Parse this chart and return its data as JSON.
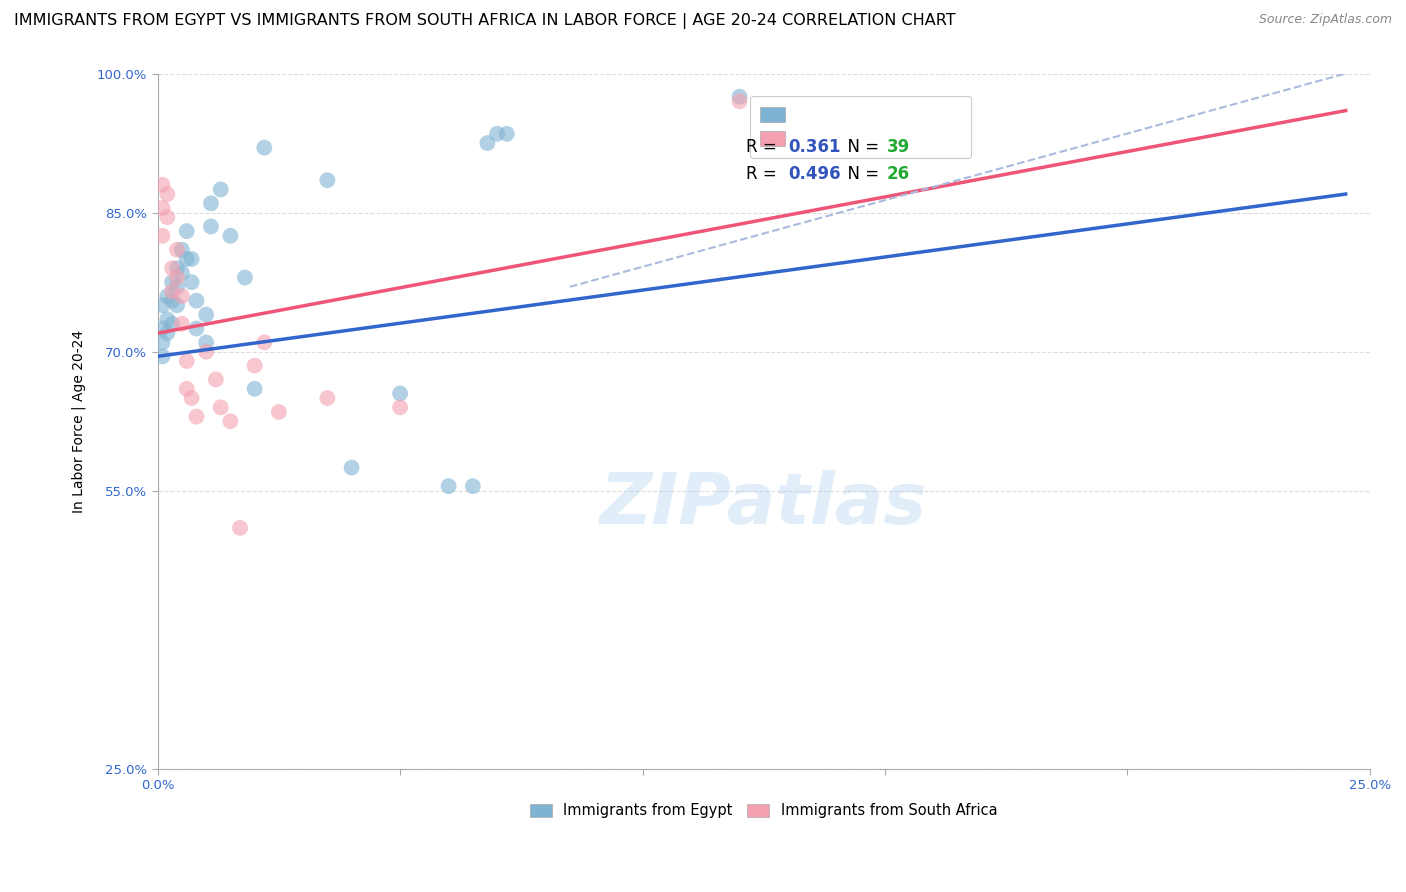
{
  "title": "IMMIGRANTS FROM EGYPT VS IMMIGRANTS FROM SOUTH AFRICA IN LABOR FORCE | AGE 20-24 CORRELATION CHART",
  "source": "Source: ZipAtlas.com",
  "ylabel": "In Labor Force | Age 20-24",
  "xlim": [
    0.0,
    0.25
  ],
  "ylim": [
    0.25,
    1.0
  ],
  "xticks": [
    0.0,
    0.05,
    0.1,
    0.15,
    0.2,
    0.25
  ],
  "yticks": [
    0.25,
    0.55,
    0.7,
    0.85,
    1.0
  ],
  "xtick_labels": [
    "0.0%",
    "",
    "",
    "",
    "",
    "25.0%"
  ],
  "ytick_labels": [
    "25.0%",
    "55.0%",
    "70.0%",
    "85.0%",
    "100.0%"
  ],
  "egypt_color": "#7fb3d3",
  "sa_color": "#f4a0b0",
  "egypt_line_color": "#3366cc",
  "sa_line_color": "#ee5577",
  "diag_line_color": "#aabbdd",
  "egypt_R": "0.361",
  "egypt_N": "39",
  "sa_R": "0.496",
  "sa_N": "26",
  "legend_R_color": "#3355bb",
  "legend_N_color": "#22aa33",
  "egypt_points": [
    [
      0.001,
      0.75
    ],
    [
      0.001,
      0.725
    ],
    [
      0.001,
      0.71
    ],
    [
      0.001,
      0.695
    ],
    [
      0.002,
      0.76
    ],
    [
      0.002,
      0.735
    ],
    [
      0.002,
      0.72
    ],
    [
      0.003,
      0.775
    ],
    [
      0.003,
      0.755
    ],
    [
      0.003,
      0.73
    ],
    [
      0.004,
      0.79
    ],
    [
      0.004,
      0.77
    ],
    [
      0.004,
      0.75
    ],
    [
      0.005,
      0.81
    ],
    [
      0.005,
      0.785
    ],
    [
      0.006,
      0.83
    ],
    [
      0.006,
      0.8
    ],
    [
      0.007,
      0.8
    ],
    [
      0.007,
      0.775
    ],
    [
      0.008,
      0.755
    ],
    [
      0.008,
      0.725
    ],
    [
      0.01,
      0.74
    ],
    [
      0.01,
      0.71
    ],
    [
      0.011,
      0.86
    ],
    [
      0.011,
      0.835
    ],
    [
      0.013,
      0.875
    ],
    [
      0.015,
      0.825
    ],
    [
      0.018,
      0.78
    ],
    [
      0.02,
      0.66
    ],
    [
      0.022,
      0.92
    ],
    [
      0.035,
      0.885
    ],
    [
      0.04,
      0.575
    ],
    [
      0.05,
      0.655
    ],
    [
      0.06,
      0.555
    ],
    [
      0.065,
      0.555
    ],
    [
      0.068,
      0.925
    ],
    [
      0.07,
      0.935
    ],
    [
      0.072,
      0.935
    ],
    [
      0.12,
      0.975
    ]
  ],
  "sa_points": [
    [
      0.001,
      0.88
    ],
    [
      0.001,
      0.855
    ],
    [
      0.001,
      0.825
    ],
    [
      0.002,
      0.87
    ],
    [
      0.002,
      0.845
    ],
    [
      0.003,
      0.79
    ],
    [
      0.003,
      0.765
    ],
    [
      0.004,
      0.81
    ],
    [
      0.004,
      0.78
    ],
    [
      0.005,
      0.76
    ],
    [
      0.005,
      0.73
    ],
    [
      0.006,
      0.69
    ],
    [
      0.006,
      0.66
    ],
    [
      0.007,
      0.65
    ],
    [
      0.008,
      0.63
    ],
    [
      0.01,
      0.7
    ],
    [
      0.012,
      0.67
    ],
    [
      0.013,
      0.64
    ],
    [
      0.015,
      0.625
    ],
    [
      0.017,
      0.51
    ],
    [
      0.02,
      0.685
    ],
    [
      0.022,
      0.71
    ],
    [
      0.025,
      0.635
    ],
    [
      0.035,
      0.65
    ],
    [
      0.05,
      0.64
    ],
    [
      0.12,
      0.97
    ]
  ],
  "egypt_line_x": [
    0.0,
    0.245
  ],
  "egypt_line_y": [
    0.695,
    0.87
  ],
  "sa_line_x": [
    0.0,
    0.245
  ],
  "sa_line_y": [
    0.72,
    0.96
  ],
  "diag_line_x": [
    0.085,
    0.245
  ],
  "diag_line_y": [
    0.77,
    1.0
  ],
  "watermark_text": "ZIPatlas",
  "watermark_color": "#aaccee",
  "background_color": "#ffffff",
  "grid_color": "#dddddd",
  "title_fontsize": 11.5,
  "axis_label_fontsize": 10,
  "tick_fontsize": 9.5,
  "legend_fontsize": 12,
  "source_fontsize": 9
}
